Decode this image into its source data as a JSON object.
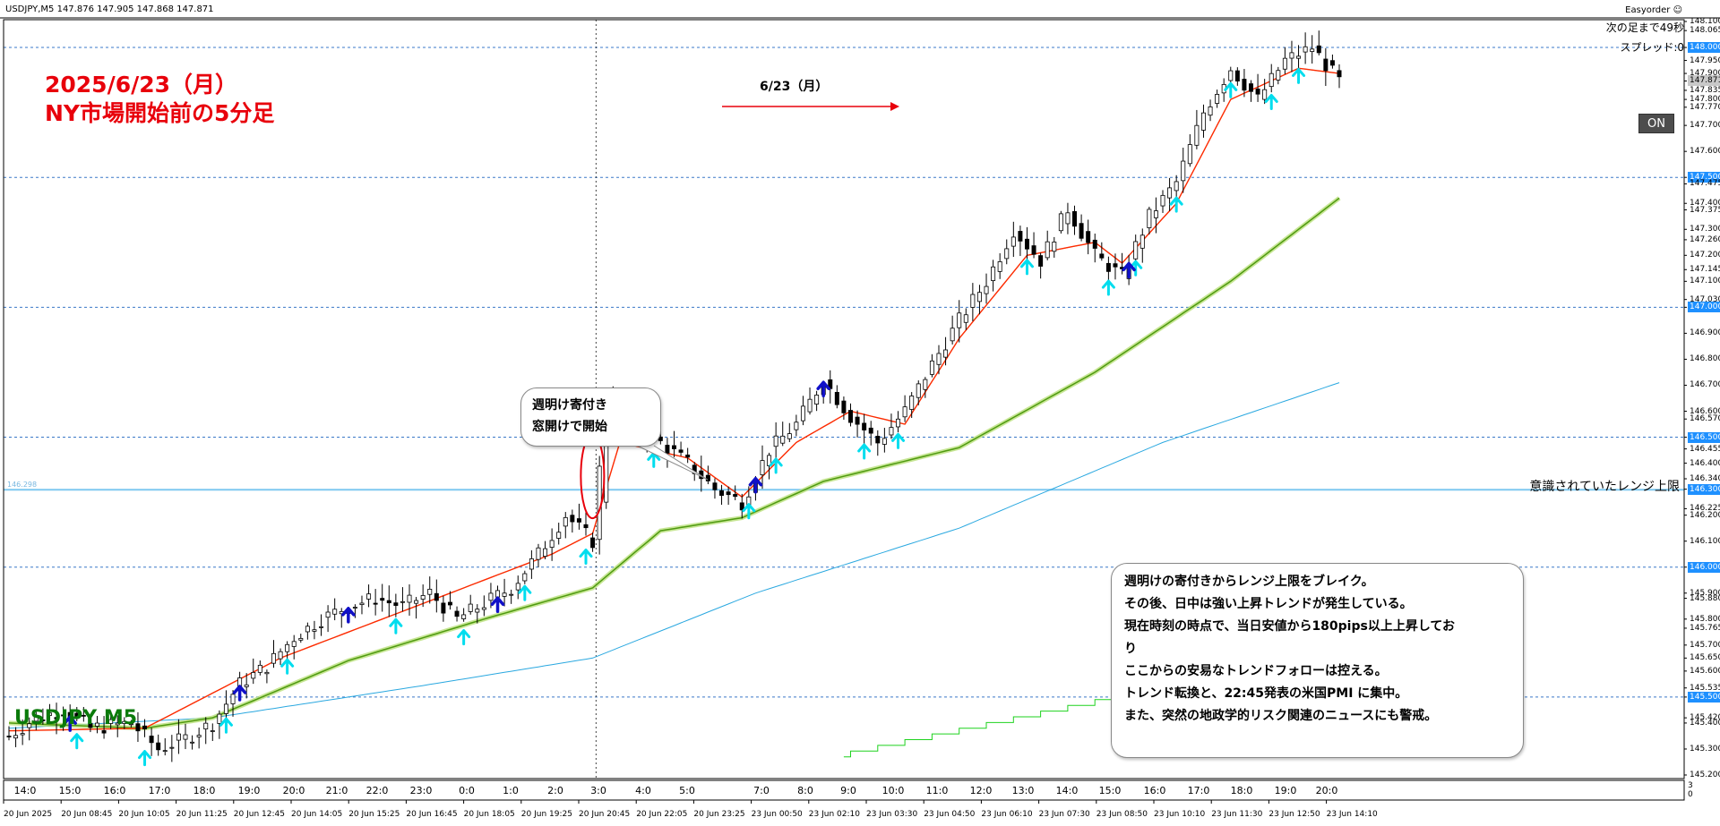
{
  "header": {
    "info": "USDJPY,M5  147.876 147.905 147.868 147.871",
    "easyorder": "Easyorder ☺",
    "countdown": "次の足まで49秒",
    "spread": "スプレッド:0",
    "on_button": "ON"
  },
  "annotations": {
    "title_line1": "2025/6/23（月）",
    "title_line2": "NY市場開始前の5分足",
    "symbol": "USDJPY M5",
    "date_arrow": "6/23（月）",
    "bubble_line1": "週明け寄付き",
    "bubble_line2": "窓開けで開始",
    "range_label": "意識されていたレンジ上限",
    "range_price": "146.298",
    "note_lines": [
      "週明けの寄付きからレンジ上限をブレイク。",
      "その後、日中は強い上昇トレンドが発生している。",
      "現在時刻の時点で、当日安値から180pips以上上昇してお",
      "り",
      "ここからの安易なトレンドフォローは控える。",
      "トレンド転換と、22:45発表の米国PMI に集中。",
      "また、突然の地政学的リスク関連のニュースにも警戒。"
    ]
  },
  "colors": {
    "candle": "#000000",
    "fast_ma": "#ff2a00",
    "slow_ma": "#7dc31a",
    "long_ma": "#2aa8e0",
    "stepline": "#1ed21e",
    "grid_dash": "#3a78c8",
    "range_line": "#7ec8f0",
    "arrow_up": "#00ddee",
    "arrow_blue": "#1010c8",
    "annotation_red": "#e8000b"
  },
  "chart_data": {
    "type": "candlestick",
    "symbol": "USDJPY",
    "timeframe": "M5",
    "ylim": [
      145.2,
      148.1
    ],
    "y_ticks": [
      "148.100",
      "148.065",
      "148.000",
      "147.950",
      "147.900",
      "147.871",
      "147.835",
      "147.800",
      "147.770",
      "147.700",
      "147.600",
      "147.500",
      "147.475",
      "147.400",
      "147.375",
      "147.300",
      "147.260",
      "147.200",
      "147.145",
      "147.100",
      "147.030",
      "147.000",
      "146.900",
      "146.800",
      "146.700",
      "146.600",
      "146.570",
      "146.500",
      "146.455",
      "146.400",
      "146.340",
      "146.300",
      "146.225",
      "146.200",
      "146.100",
      "146.000",
      "145.900",
      "145.880",
      "145.800",
      "145.765",
      "145.700",
      "145.650",
      "145.600",
      "145.535",
      "145.500",
      "145.420",
      "145.400",
      "145.300",
      "145.200"
    ],
    "highlighted_ticks": [
      "148.000",
      "147.871",
      "147.500",
      "147.000",
      "146.500",
      "146.300",
      "146.000",
      "145.500"
    ],
    "x_hour_ticks": [
      "14:0",
      "15:0",
      "16:0",
      "17:0",
      "18:0",
      "19:0",
      "20:0",
      "21:0",
      "22:0",
      "23:0",
      "0:0",
      "1:0",
      "2:0",
      "3:0",
      "4:0",
      "5:0",
      "7:0",
      "8:0",
      "9:0",
      "10:0",
      "11:0",
      "12:0",
      "13:0",
      "14:0",
      "15:0",
      "16:0",
      "17:0",
      "18:0",
      "19:0",
      "20:0"
    ],
    "x_date_ticks": [
      "20 Jun 2025",
      "20 Jun 08:45",
      "20 Jun 10:05",
      "20 Jun 11:25",
      "20 Jun 12:45",
      "20 Jun 14:05",
      "20 Jun 15:25",
      "20 Jun 16:45",
      "20 Jun 18:05",
      "20 Jun 19:25",
      "20 Jun 20:45",
      "20 Jun 22:05",
      "20 Jun 23:25",
      "23 Jun 00:50",
      "23 Jun 02:10",
      "23 Jun 03:30",
      "23 Jun 04:50",
      "23 Jun 06:10",
      "23 Jun 07:30",
      "23 Jun 08:50",
      "23 Jun 10:10",
      "23 Jun 11:30",
      "23 Jun 12:50",
      "23 Jun 14:10"
    ],
    "subwindow_ticks": [
      "3",
      "0"
    ],
    "price_path": [
      [
        0,
        145.35
      ],
      [
        4,
        145.42
      ],
      [
        8,
        145.45
      ],
      [
        12,
        145.38
      ],
      [
        18,
        145.4
      ],
      [
        22,
        145.3
      ],
      [
        26,
        145.34
      ],
      [
        30,
        145.4
      ],
      [
        34,
        145.55
      ],
      [
        38,
        145.62
      ],
      [
        42,
        145.73
      ],
      [
        46,
        145.8
      ],
      [
        50,
        145.85
      ],
      [
        54,
        145.88
      ],
      [
        58,
        145.85
      ],
      [
        62,
        145.9
      ],
      [
        66,
        145.8
      ],
      [
        70,
        145.86
      ],
      [
        74,
        145.92
      ],
      [
        78,
        146.05
      ],
      [
        82,
        146.2
      ],
      [
        86,
        146.1
      ],
      [
        88,
        146.65
      ],
      [
        92,
        146.55
      ],
      [
        96,
        146.48
      ],
      [
        100,
        146.4
      ],
      [
        104,
        146.3
      ],
      [
        108,
        146.25
      ],
      [
        112,
        146.45
      ],
      [
        116,
        146.55
      ],
      [
        120,
        146.72
      ],
      [
        124,
        146.58
      ],
      [
        128,
        146.48
      ],
      [
        132,
        146.6
      ],
      [
        136,
        146.78
      ],
      [
        140,
        146.95
      ],
      [
        144,
        147.1
      ],
      [
        148,
        147.3
      ],
      [
        152,
        147.18
      ],
      [
        156,
        147.38
      ],
      [
        160,
        147.2
      ],
      [
        164,
        147.12
      ],
      [
        168,
        147.35
      ],
      [
        172,
        147.48
      ],
      [
        176,
        147.75
      ],
      [
        180,
        147.92
      ],
      [
        184,
        147.8
      ],
      [
        188,
        147.95
      ],
      [
        192,
        148.0
      ],
      [
        196,
        147.87
      ]
    ],
    "fast_ma_path": [
      [
        0,
        145.37
      ],
      [
        20,
        145.38
      ],
      [
        40,
        145.65
      ],
      [
        60,
        145.85
      ],
      [
        80,
        146.05
      ],
      [
        86,
        146.13
      ],
      [
        90,
        146.48
      ],
      [
        100,
        146.42
      ],
      [
        108,
        146.27
      ],
      [
        116,
        146.48
      ],
      [
        124,
        146.6
      ],
      [
        132,
        146.55
      ],
      [
        140,
        146.88
      ],
      [
        150,
        147.2
      ],
      [
        160,
        147.25
      ],
      [
        164,
        147.17
      ],
      [
        172,
        147.4
      ],
      [
        180,
        147.8
      ],
      [
        190,
        147.92
      ],
      [
        196,
        147.9
      ]
    ],
    "slow_ma_path": [
      [
        0,
        145.4
      ],
      [
        20,
        145.38
      ],
      [
        30,
        145.42
      ],
      [
        50,
        145.64
      ],
      [
        70,
        145.8
      ],
      [
        86,
        145.92
      ],
      [
        96,
        146.14
      ],
      [
        108,
        146.19
      ],
      [
        120,
        146.33
      ],
      [
        140,
        146.46
      ],
      [
        160,
        146.75
      ],
      [
        180,
        147.1
      ],
      [
        196,
        147.42
      ]
    ],
    "long_ma_path": [
      [
        0,
        145.38
      ],
      [
        30,
        145.42
      ],
      [
        60,
        145.54
      ],
      [
        86,
        145.65
      ],
      [
        110,
        145.9
      ],
      [
        140,
        146.15
      ],
      [
        170,
        146.48
      ],
      [
        196,
        146.71
      ]
    ]
  }
}
